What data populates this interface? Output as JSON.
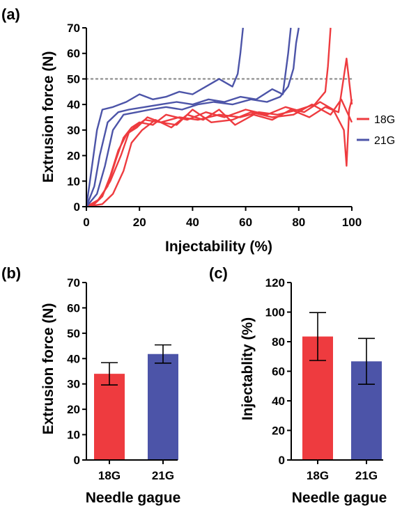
{
  "panels": {
    "a": {
      "label": "(a)"
    },
    "b": {
      "label": "(b)"
    },
    "c": {
      "label": "(c)"
    }
  },
  "colors": {
    "18G": "#ee3b3f",
    "21G": "#4c54a8",
    "threshold": "#999999"
  },
  "chart_data": [
    {
      "type": "line",
      "xlabel": "Injectability (%)",
      "ylabel": "Extrusion force (N)",
      "xlim": [
        0,
        100
      ],
      "ylim": [
        0,
        70
      ],
      "xticks": [
        0,
        20,
        40,
        60,
        80,
        100
      ],
      "yticks": [
        0,
        10,
        20,
        30,
        40,
        50,
        60,
        70
      ],
      "threshold_line": {
        "y": 50,
        "style": "dotted"
      },
      "legend": {
        "position": "right",
        "entries": [
          "18G",
          "21G"
        ]
      },
      "series": [
        {
          "name": "18G",
          "traces": [
            {
              "x": [
                0,
                3,
                6,
                9,
                12,
                15,
                18,
                22,
                28,
                35,
                42,
                50,
                58,
                65,
                72,
                80,
                86,
                90,
                91,
                92
              ],
              "y": [
                0,
                1,
                4,
                12,
                22,
                28,
                31,
                34,
                33,
                35,
                34,
                36,
                35,
                37,
                36,
                38,
                40,
                45,
                55,
                70
              ]
            },
            {
              "x": [
                0,
                4,
                8,
                11,
                14,
                17,
                20,
                25,
                30,
                38,
                45,
                52,
                60,
                68,
                75,
                82,
                88,
                93,
                97,
                98,
                99,
                100
              ],
              "y": [
                0,
                2,
                8,
                18,
                27,
                31,
                33,
                32,
                36,
                34,
                37,
                35,
                38,
                36,
                39,
                37,
                41,
                38,
                30,
                16,
                38,
                42
              ]
            },
            {
              "x": [
                0,
                5,
                9,
                13,
                16,
                19,
                23,
                28,
                34,
                40,
                47,
                55,
                62,
                70,
                78,
                85,
                92,
                96,
                100
              ],
              "y": [
                0,
                3,
                10,
                20,
                29,
                31,
                35,
                33,
                32,
                38,
                33,
                34,
                37,
                35,
                36,
                40,
                36,
                42,
                33
              ]
            },
            {
              "x": [
                0,
                6,
                10,
                14,
                17,
                21,
                26,
                32,
                38,
                44,
                50,
                56,
                63,
                70,
                77,
                84,
                90,
                95,
                98,
                100
              ],
              "y": [
                0,
                1,
                5,
                14,
                25,
                30,
                34,
                31,
                36,
                34,
                38,
                32,
                36,
                34,
                38,
                35,
                39,
                37,
                58,
                40
              ]
            }
          ]
        },
        {
          "name": "21G",
          "traces": [
            {
              "x": [
                0,
                2,
                4,
                6,
                10,
                15,
                20,
                25,
                30,
                35,
                40,
                45,
                50,
                55,
                57,
                58,
                59
              ],
              "y": [
                0,
                15,
                30,
                38,
                39,
                41,
                44,
                42,
                43,
                45,
                44,
                47,
                50,
                47,
                52,
                60,
                70
              ]
            },
            {
              "x": [
                0,
                3,
                5,
                8,
                12,
                16,
                22,
                28,
                34,
                40,
                46,
                52,
                58,
                64,
                70,
                74,
                76,
                77
              ],
              "y": [
                0,
                8,
                20,
                33,
                37,
                38,
                39,
                40,
                41,
                40,
                42,
                41,
                43,
                42,
                46,
                44,
                60,
                70
              ]
            },
            {
              "x": [
                0,
                4,
                7,
                10,
                14,
                19,
                24,
                30,
                36,
                42,
                48,
                55,
                62,
                68,
                73,
                76,
                78,
                79,
                80
              ],
              "y": [
                0,
                5,
                16,
                30,
                36,
                37,
                38,
                39,
                38,
                40,
                41,
                40,
                42,
                41,
                43,
                47,
                54,
                64,
                70
              ]
            }
          ]
        }
      ]
    },
    {
      "type": "bar",
      "xlabel": "Needle gague",
      "ylabel": "Extrusion force (N)",
      "categories": [
        "18G",
        "21G"
      ],
      "values": [
        34,
        41.8
      ],
      "errors": [
        4.4,
        3.6
      ],
      "ylim": [
        0,
        70
      ],
      "yticks": [
        0,
        10,
        20,
        30,
        40,
        50,
        60,
        70
      ]
    },
    {
      "type": "bar",
      "xlabel": "Needle gague",
      "ylabel": "Injectablity (%)",
      "categories": [
        "18G",
        "21G"
      ],
      "values": [
        83.5,
        66.7
      ],
      "errors": [
        16.2,
        15.5
      ],
      "ylim": [
        0,
        120
      ],
      "yticks": [
        0,
        20,
        40,
        60,
        80,
        100,
        120
      ]
    }
  ]
}
